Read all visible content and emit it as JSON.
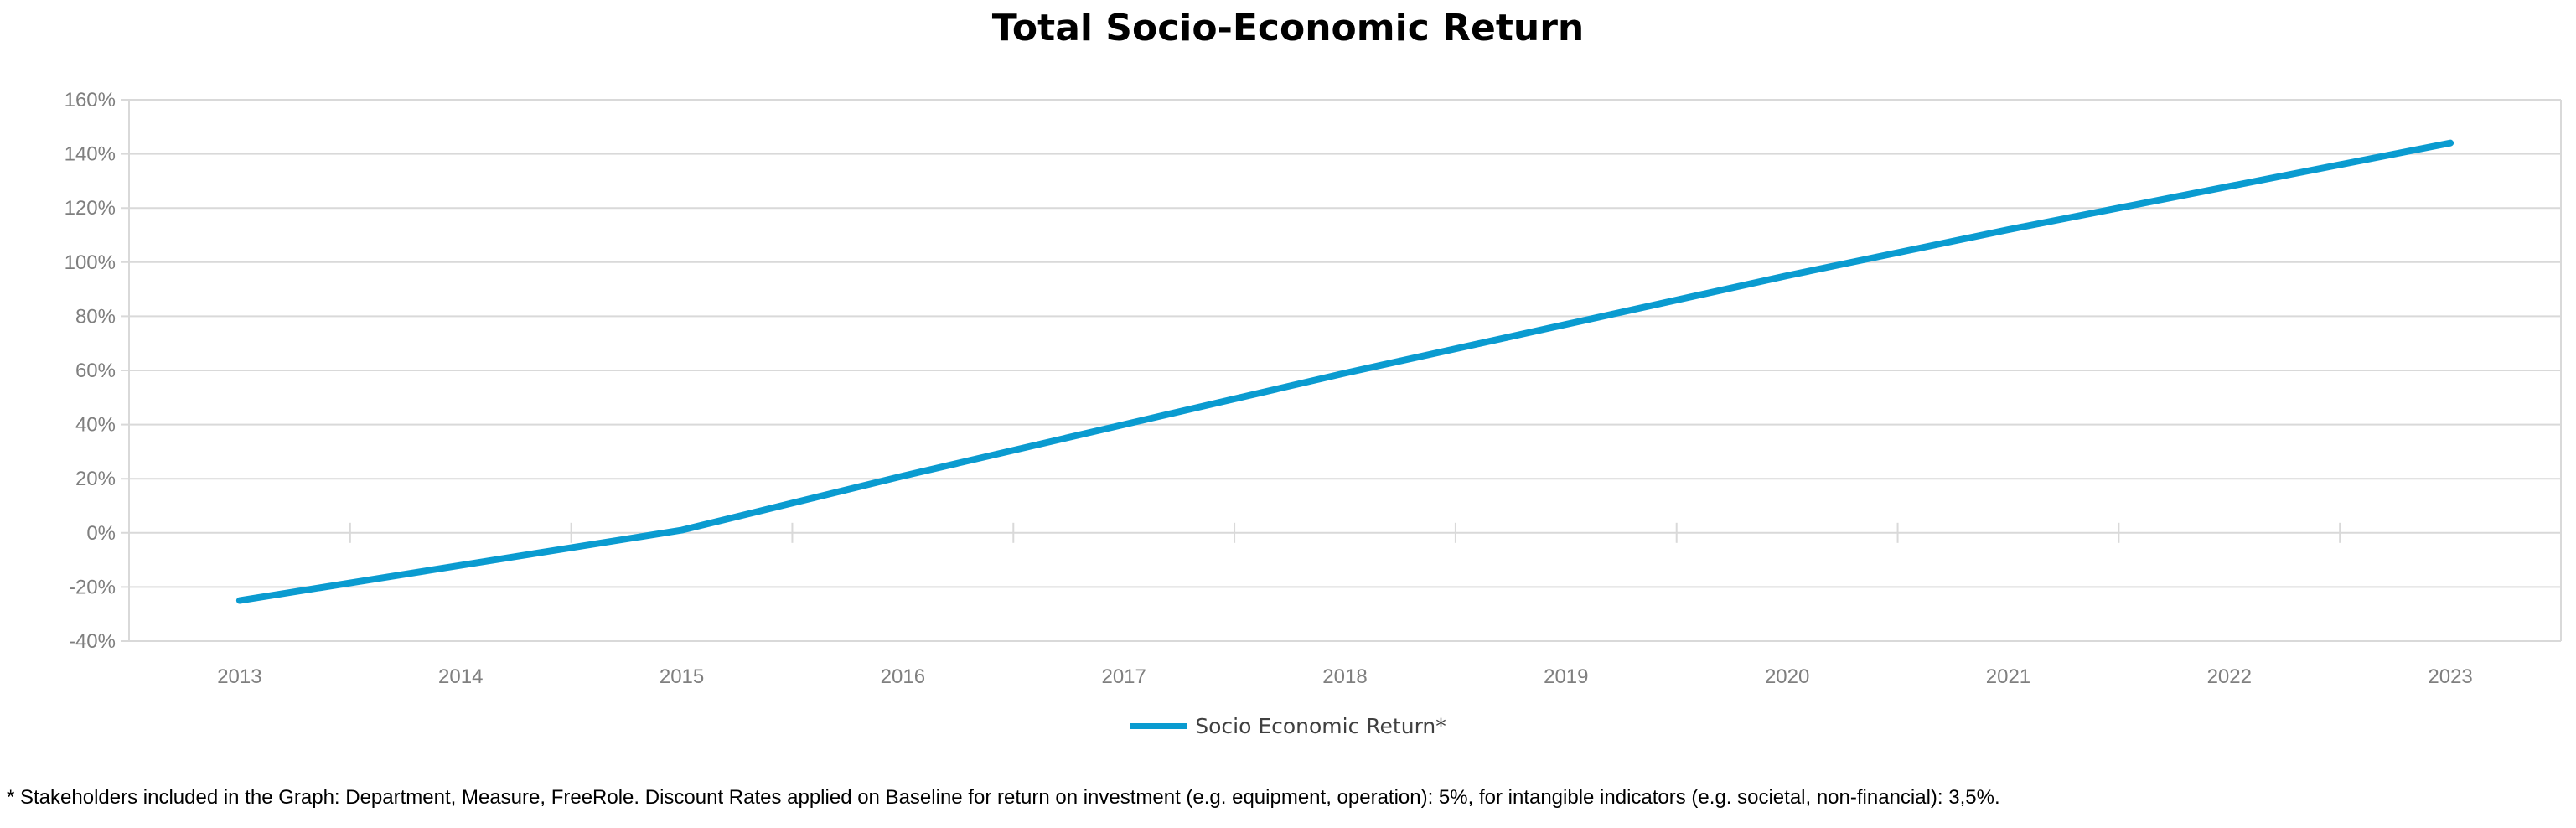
{
  "chart_data": {
    "type": "line",
    "title": "Total Socio-Economic Return",
    "xlabel": "",
    "ylabel": "",
    "categories": [
      "2013",
      "2014",
      "2015",
      "2016",
      "2017",
      "2018",
      "2019",
      "2020",
      "2021",
      "2022",
      "2023"
    ],
    "series": [
      {
        "name": "Socio Economic Return*",
        "color": "#0a9bd0",
        "values": [
          -25,
          -12,
          1,
          21,
          40,
          59,
          77,
          95,
          112,
          128,
          144
        ]
      }
    ],
    "ylim": [
      -40,
      160
    ],
    "yticks": [
      -40,
      -20,
      0,
      20,
      40,
      60,
      80,
      100,
      120,
      140,
      160
    ],
    "ytick_format": "percent",
    "grid": true,
    "legend": "bottom-center"
  },
  "footnote": "* Stakeholders included in the Graph: Department, Measure, FreeRole. Discount Rates applied on Baseline for return on investment (e.g. equipment, operation): 5%, for intangible indicators (e.g. societal, non-financial): 3,5%."
}
